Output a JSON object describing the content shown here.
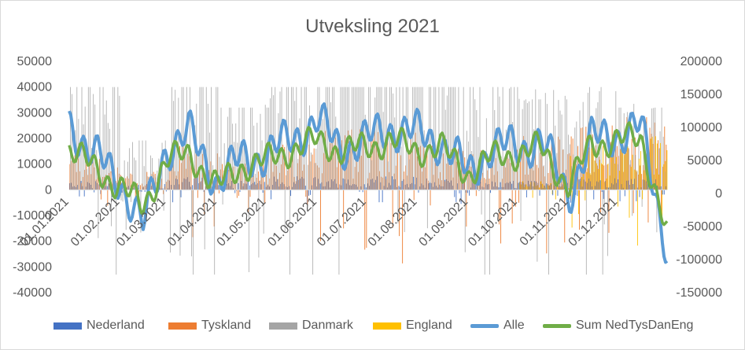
{
  "chart_data": {
    "type": "bar+line",
    "title": "Utveksling 2021",
    "xlabel": "",
    "ylabel": "",
    "y_left": {
      "lim": [
        -40000,
        50000
      ],
      "ticks": [
        "50000",
        "40000",
        "30000",
        "20000",
        "10000",
        "0",
        "-10000",
        "-20000",
        "-30000",
        "-40000"
      ]
    },
    "y_right": {
      "lim": [
        -150000,
        200000
      ],
      "ticks": [
        "200000",
        "150000",
        "100000",
        "50000",
        "0",
        "-50000",
        "-100000",
        "-150000"
      ]
    },
    "x_ticks": [
      "01.01.2021",
      "01.02.2021",
      "01.03.2021",
      "01.04.2021",
      "01.05.2021",
      "01.06.2021",
      "01.07.2021",
      "01.08.2021",
      "01.09.2021",
      "01.10.2021",
      "01.11.2021",
      "01.12.2021"
    ],
    "legend_position": "bottom",
    "series": [
      {
        "name": "Nederland",
        "type": "bar",
        "axis": "left",
        "color": "#4472C4",
        "monthly_typical": [
          2000,
          1500,
          3000,
          2000,
          3000,
          2500,
          3000,
          2500,
          2000,
          2000,
          2500,
          2500
        ]
      },
      {
        "name": "Tyskland",
        "type": "bar",
        "axis": "left",
        "color": "#ED7D31",
        "monthly_typical": [
          8000,
          4000,
          10000,
          6000,
          11000,
          14000,
          13000,
          11000,
          10000,
          12000,
          14000,
          16000
        ]
      },
      {
        "name": "Danmark",
        "type": "bar",
        "axis": "left",
        "color": "#A5A5A5",
        "monthly_typical": [
          25000,
          12000,
          30000,
          20000,
          30000,
          38000,
          36000,
          33000,
          28000,
          22000,
          24000,
          20000
        ]
      },
      {
        "name": "England",
        "type": "bar",
        "axis": "left",
        "color": "#FFC000",
        "monthly_typical": [
          0,
          0,
          0,
          0,
          0,
          0,
          0,
          0,
          0,
          2000,
          10000,
          12000
        ]
      },
      {
        "name": "Alle",
        "type": "line",
        "axis": "right",
        "color": "#5B9BD5",
        "x": [
          "01.01.2021",
          "15.01.2021",
          "01.02.2021",
          "15.02.2021",
          "01.03.2021",
          "15.03.2021",
          "01.04.2021",
          "15.04.2021",
          "01.05.2021",
          "15.05.2021",
          "01.06.2021",
          "15.06.2021",
          "01.07.2021",
          "15.07.2021",
          "01.08.2021",
          "15.08.2021",
          "01.09.2021",
          "15.09.2021",
          "01.10.2021",
          "15.10.2021",
          "01.11.2021",
          "15.11.2021",
          "01.12.2021",
          "15.12.2021",
          "31.12.2021"
        ],
        "values": [
          110000,
          60000,
          20000,
          -50000,
          70000,
          90000,
          20000,
          50000,
          60000,
          80000,
          110000,
          70000,
          80000,
          100000,
          90000,
          80000,
          30000,
          70000,
          70000,
          80000,
          0,
          80000,
          90000,
          100000,
          -80000
        ]
      },
      {
        "name": "Sum NedTysDanEng",
        "type": "line",
        "axis": "right",
        "color": "#70AD47",
        "x": [
          "01.01.2021",
          "15.01.2021",
          "01.02.2021",
          "15.02.2021",
          "01.03.2021",
          "15.03.2021",
          "01.04.2021",
          "15.04.2021",
          "01.05.2021",
          "15.05.2021",
          "01.06.2021",
          "15.06.2021",
          "01.07.2021",
          "15.07.2021",
          "01.08.2021",
          "15.08.2021",
          "01.09.2021",
          "15.09.2021",
          "01.10.2021",
          "15.10.2021",
          "01.11.2021",
          "15.11.2021",
          "01.12.2021",
          "15.12.2021",
          "31.12.2021"
        ],
        "values": [
          70000,
          40000,
          10000,
          -20000,
          50000,
          60000,
          10000,
          40000,
          50000,
          65000,
          80000,
          65000,
          70000,
          80000,
          65000,
          70000,
          30000,
          55000,
          60000,
          70000,
          10000,
          75000,
          80000,
          85000,
          -60000
        ]
      }
    ]
  }
}
